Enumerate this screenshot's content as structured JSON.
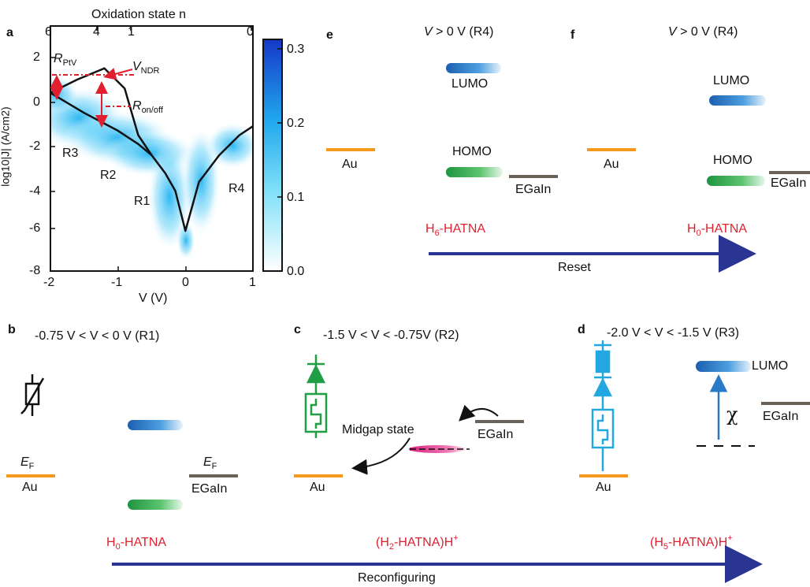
{
  "colors": {
    "au": "#f39a1e",
    "egain": "#6b635a",
    "red": "#e0202e",
    "arrow_blue": "#2a3593",
    "lumo": "#2a78c8",
    "homo": "#2ba84a",
    "midgap": "#e2328a",
    "device_green": "#1f9e45",
    "device_cyan": "#22a7e0"
  },
  "panel_a": {
    "label": "a",
    "top_axis_title": "Oxidation state n",
    "top_ticks": [
      "6",
      "4",
      "1",
      "0"
    ],
    "xlabel": "V (V)",
    "ylabel": "log10|J| (A/cm2)",
    "x_ticks": [
      "-2",
      "-1",
      "0",
      "1"
    ],
    "y_ticks": [
      "2",
      "0",
      "-2",
      "-4",
      "-6",
      "-8"
    ],
    "colorbar_ticks": [
      "0.3",
      "0.2",
      "0.1",
      "0.0"
    ],
    "regions": [
      "R1",
      "R2",
      "R3",
      "R4"
    ],
    "ann_rptv": "R",
    "ann_rptv_sub": "PtV",
    "ann_vndr": "V",
    "ann_vndr_sub": "NDR",
    "ann_ronoff": "R",
    "ann_ronoff_sub": "on/off"
  },
  "chart_data": {
    "type": "line",
    "xlabel": "V (V)",
    "ylabel": "log10|J| (A/cm2)",
    "xlim": [
      -2,
      1
    ],
    "ylim": [
      -8,
      3
    ],
    "colorbar_range": [
      0,
      0.3
    ],
    "series": [
      {
        "x": [
          -2.0,
          -1.6,
          -1.2,
          -0.9,
          -0.7,
          -0.5,
          -0.3,
          -0.15,
          0.0,
          0.2,
          0.5,
          0.8,
          1.0
        ],
        "y": [
          0.0,
          0.6,
          1.1,
          0.2,
          -1.9,
          -2.8,
          -3.6,
          -4.4,
          -6.2,
          -4.0,
          -2.8,
          -1.9,
          -1.5
        ]
      },
      {
        "x": [
          -2.0,
          -1.5,
          -1.0,
          -0.7,
          -0.5
        ],
        "y": [
          0.0,
          -0.9,
          -1.7,
          -2.3,
          -2.8
        ]
      }
    ]
  },
  "panel_b": {
    "label": "b",
    "condition": "-0.75 V < V < 0 V (R1)",
    "ef_left": "E",
    "ef_left_sub": "F",
    "au": "Au",
    "ef_right": "E",
    "ef_right_sub": "F",
    "egain": "EGaIn"
  },
  "panel_c": {
    "label": "c",
    "condition": "-1.5 V < V < -0.75V (R2)",
    "midgap": "Midgap state",
    "egain": "EGaIn",
    "au": "Au"
  },
  "panel_d": {
    "label": "d",
    "condition": "-2.0 V < V < -1.5 V (R3)",
    "lumo": "LUMO",
    "chi": "χ",
    "egain": "EGaIn",
    "au": "Au"
  },
  "panel_e": {
    "label": "e",
    "condition_v": "V",
    "condition_rest": "> 0 V (R4)",
    "lumo": "LUMO",
    "homo": "HOMO",
    "au": "Au",
    "egain": "EGaIn"
  },
  "panel_f": {
    "label": "f",
    "condition_v": "V",
    "condition_rest": "> 0 V (R4)",
    "lumo": "LUMO",
    "homo": "HOMO",
    "au": "Au",
    "egain": "EGaIn"
  },
  "reset": {
    "left_a": "H",
    "left_sub": "6",
    "left_b": "-HATNA",
    "right_a": "H",
    "right_sub": "0",
    "right_b": "-HATNA",
    "label": "Reset"
  },
  "reconfig": {
    "s1_a": "H",
    "s1_sub": "0",
    "s1_b": "-HATNA",
    "s2_a": "(H",
    "s2_sub": "2",
    "s2_b": "-HATNA)H",
    "s2_sup": "+",
    "s3_a": "(H",
    "s3_sub": "5",
    "s3_b": "-HATNA)H",
    "s3_sup": "+",
    "label": "Reconfiguring"
  }
}
